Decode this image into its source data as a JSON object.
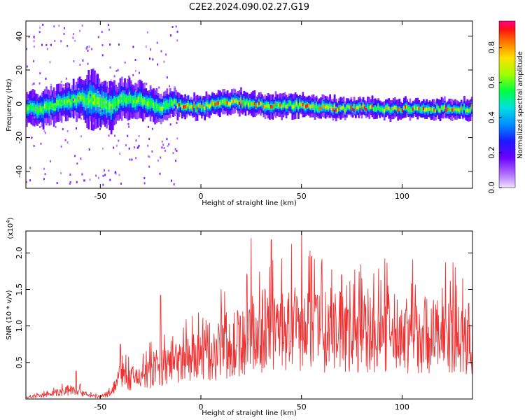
{
  "title": "C2E2.2024.090.02.27.G19",
  "chart_data": [
    {
      "type": "heatmap",
      "xlabel": "Height of straight line (km)",
      "ylabel": "Frequency (Hz)",
      "xlim": [
        -87,
        135
      ],
      "ylim": [
        -50,
        49
      ],
      "xticks": [
        -50,
        0,
        50,
        100
      ],
      "yticks": [
        -40,
        -20,
        0,
        20,
        40
      ],
      "colorbar": {
        "label": "Normalized spectral amplitude",
        "range": [
          0.0,
          0.95
        ],
        "ticks": [
          0.0,
          0.2,
          0.4,
          0.6,
          0.8
        ]
      },
      "trace": {
        "x": [
          -87,
          -80,
          -70,
          -60,
          -55,
          -50,
          -45,
          -40,
          -30,
          -20,
          -15,
          -10,
          0,
          10,
          20,
          30,
          40,
          50,
          60,
          70,
          80,
          90,
          100,
          110,
          120,
          135
        ],
        "center_hz": [
          -2,
          -3,
          0,
          3,
          2,
          0,
          -2,
          3,
          2,
          -3,
          1,
          -1,
          -2,
          1,
          1,
          -1,
          -1,
          -1,
          -2,
          -3,
          -2,
          -3,
          -3,
          -3,
          -3,
          -3
        ],
        "width_hz": [
          8,
          9,
          9,
          10,
          16,
          14,
          12,
          10,
          9,
          8,
          7,
          6,
          6,
          6,
          6,
          6,
          6,
          6,
          6,
          5,
          5,
          5,
          5,
          5,
          5,
          5
        ]
      }
    },
    {
      "type": "line",
      "series": [
        {
          "color": "#f03030",
          "x": [
            -87,
            -80,
            -70,
            -65,
            -60,
            -55,
            -50,
            -45,
            -42,
            -40,
            -35,
            -30,
            -25,
            -20,
            -15,
            -10,
            -5,
            0,
            5,
            10,
            15,
            20,
            25,
            30,
            35,
            40,
            45,
            50,
            55,
            60,
            65,
            70,
            75,
            80,
            85,
            90,
            95,
            100,
            105,
            110,
            115,
            120,
            125,
            130,
            135
          ],
          "y": [
            0.02,
            0.05,
            0.1,
            0.15,
            0.12,
            0.05,
            0.03,
            0.1,
            0.25,
            0.35,
            0.3,
            0.35,
            0.4,
            0.45,
            0.5,
            0.55,
            0.6,
            0.65,
            0.7,
            0.75,
            0.82,
            0.88,
            0.95,
            1.0,
            1.05,
            1.05,
            1.05,
            1.05,
            1.02,
            1.02,
            1.02,
            1.02,
            1.0,
            1.0,
            1.0,
            1.0,
            1.0,
            1.0,
            1.0,
            1.0,
            0.98,
            0.96,
            0.95,
            0.93,
            0.9
          ]
        }
      ],
      "peaks": [
        [
          -62,
          0.38
        ],
        [
          -40,
          0.75
        ],
        [
          -20,
          1.42
        ],
        [
          10,
          1.5
        ],
        [
          25,
          2.2
        ],
        [
          35,
          2.18
        ],
        [
          45,
          2.12
        ],
        [
          50,
          2.3
        ],
        [
          55,
          1.95
        ],
        [
          60,
          1.85
        ],
        [
          70,
          1.7
        ],
        [
          80,
          1.65
        ],
        [
          93,
          1.55
        ],
        [
          105,
          1.48
        ],
        [
          120,
          1.52
        ],
        [
          133,
          1.3
        ]
      ],
      "xlabel": "Height of straight line (km)",
      "ylabel": "SNR (10 * v/v)",
      "multiplier": "(x10",
      "multiplier_exp": "4",
      "multiplier_close": ")",
      "xlim": [
        -87,
        135
      ],
      "ylim": [
        0,
        2.3
      ],
      "xticks": [
        -50,
        0,
        50,
        100
      ],
      "yticks": [
        0.5,
        1.0,
        1.5,
        2.0
      ]
    }
  ]
}
